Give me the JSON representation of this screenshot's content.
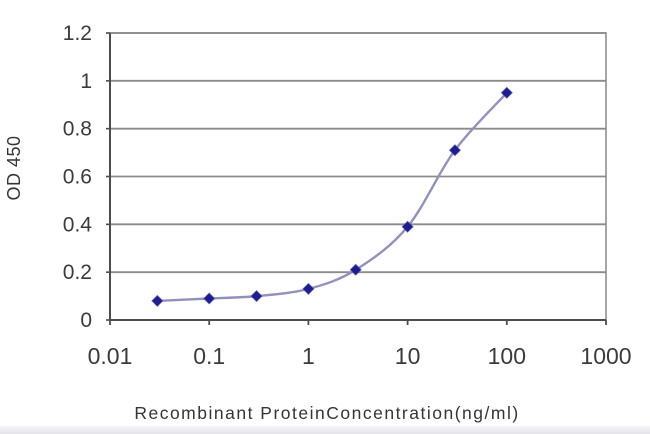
{
  "page": {
    "background": "#ffffff",
    "footer_strip_color": "#e4e4ea"
  },
  "chart_data": {
    "type": "line",
    "x": [
      0.03,
      0.1,
      0.3,
      1,
      3,
      10,
      30,
      100
    ],
    "y": [
      0.08,
      0.09,
      0.1,
      0.13,
      0.21,
      0.39,
      0.71,
      0.95
    ],
    "title": "",
    "xlabel": "Recombinant ProteinConcentration(ng/ml)",
    "ylabel": "OD 450",
    "x_scale": "log",
    "xlim": [
      0.01,
      1000
    ],
    "ylim": [
      0,
      1.2
    ],
    "x_tick_labels": [
      "0.01",
      "0.1",
      "1",
      "10",
      "100",
      "1000"
    ],
    "y_ticks": [
      0,
      0.2,
      0.4,
      0.6,
      0.8,
      1,
      1.2
    ],
    "y_tick_labels": [
      "0",
      "0.2",
      "0.4",
      "0.6",
      "0.8",
      "1",
      "1.2"
    ],
    "grid": "horizontal-only",
    "legend": "none",
    "marker": "diamond",
    "colors": {
      "line": "#9191bd",
      "marker": "#1d1d8f",
      "marker_edge": "#5050b4",
      "grid": "#8b8b8b",
      "axis": "#4d4d4d",
      "border": "#909090",
      "text": "#3b3b3b"
    }
  }
}
